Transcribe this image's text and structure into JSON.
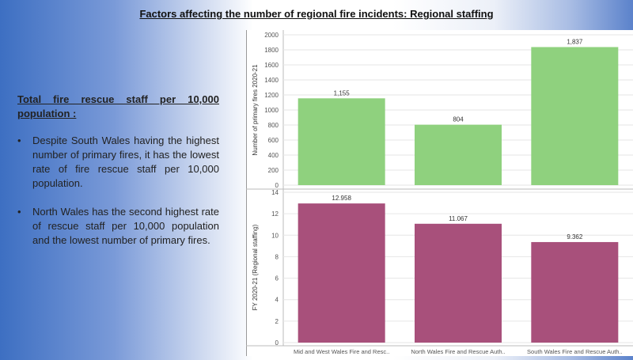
{
  "slide": {
    "title": "Factors affecting the number of regional fire incidents: Regional staffing",
    "subheading": "Total fire rescue staff per 10,000 population :",
    "bullets": [
      "Despite South Wales having the highest number of primary fires, it has the lowest rate of fire rescue staff per 10,000 population.",
      "North Wales has the second highest rate of rescue staff per 10,000 population and the lowest number of primary fires."
    ],
    "bullet_symbol": "•"
  },
  "chart_data": [
    {
      "type": "bar",
      "categories": [
        "Mid and West Wales Fire and Resc..",
        "North Wales Fire and Rescue Auth..",
        "South Wales Fire and Rescue Auth.."
      ],
      "values": [
        1155,
        804,
        1837
      ],
      "value_labels": [
        "1,155",
        "804",
        "1,837"
      ],
      "ylabel": "Number of primary fires 2020-21",
      "ylim": [
        0,
        2000
      ],
      "yticks": [
        "0",
        "200",
        "400",
        "600",
        "800",
        "1000",
        "1200",
        "1400",
        "1600",
        "1800",
        "2000"
      ],
      "color": "#8fd17e",
      "grid": true
    },
    {
      "type": "bar",
      "categories": [
        "Mid and West Wales Fire and Resc..",
        "North Wales Fire and Rescue Auth..",
        "South Wales Fire and Rescue Auth.."
      ],
      "values": [
        12.958,
        11.067,
        9.362
      ],
      "value_labels": [
        "12.958",
        "11.067",
        "9.362"
      ],
      "ylabel": "FY 2020-21 (Regional staffing)",
      "ylim": [
        0,
        14
      ],
      "yticks": [
        "0",
        "2",
        "4",
        "6",
        "8",
        "10",
        "12",
        "14"
      ],
      "color": "#a8507b",
      "grid": true
    }
  ]
}
